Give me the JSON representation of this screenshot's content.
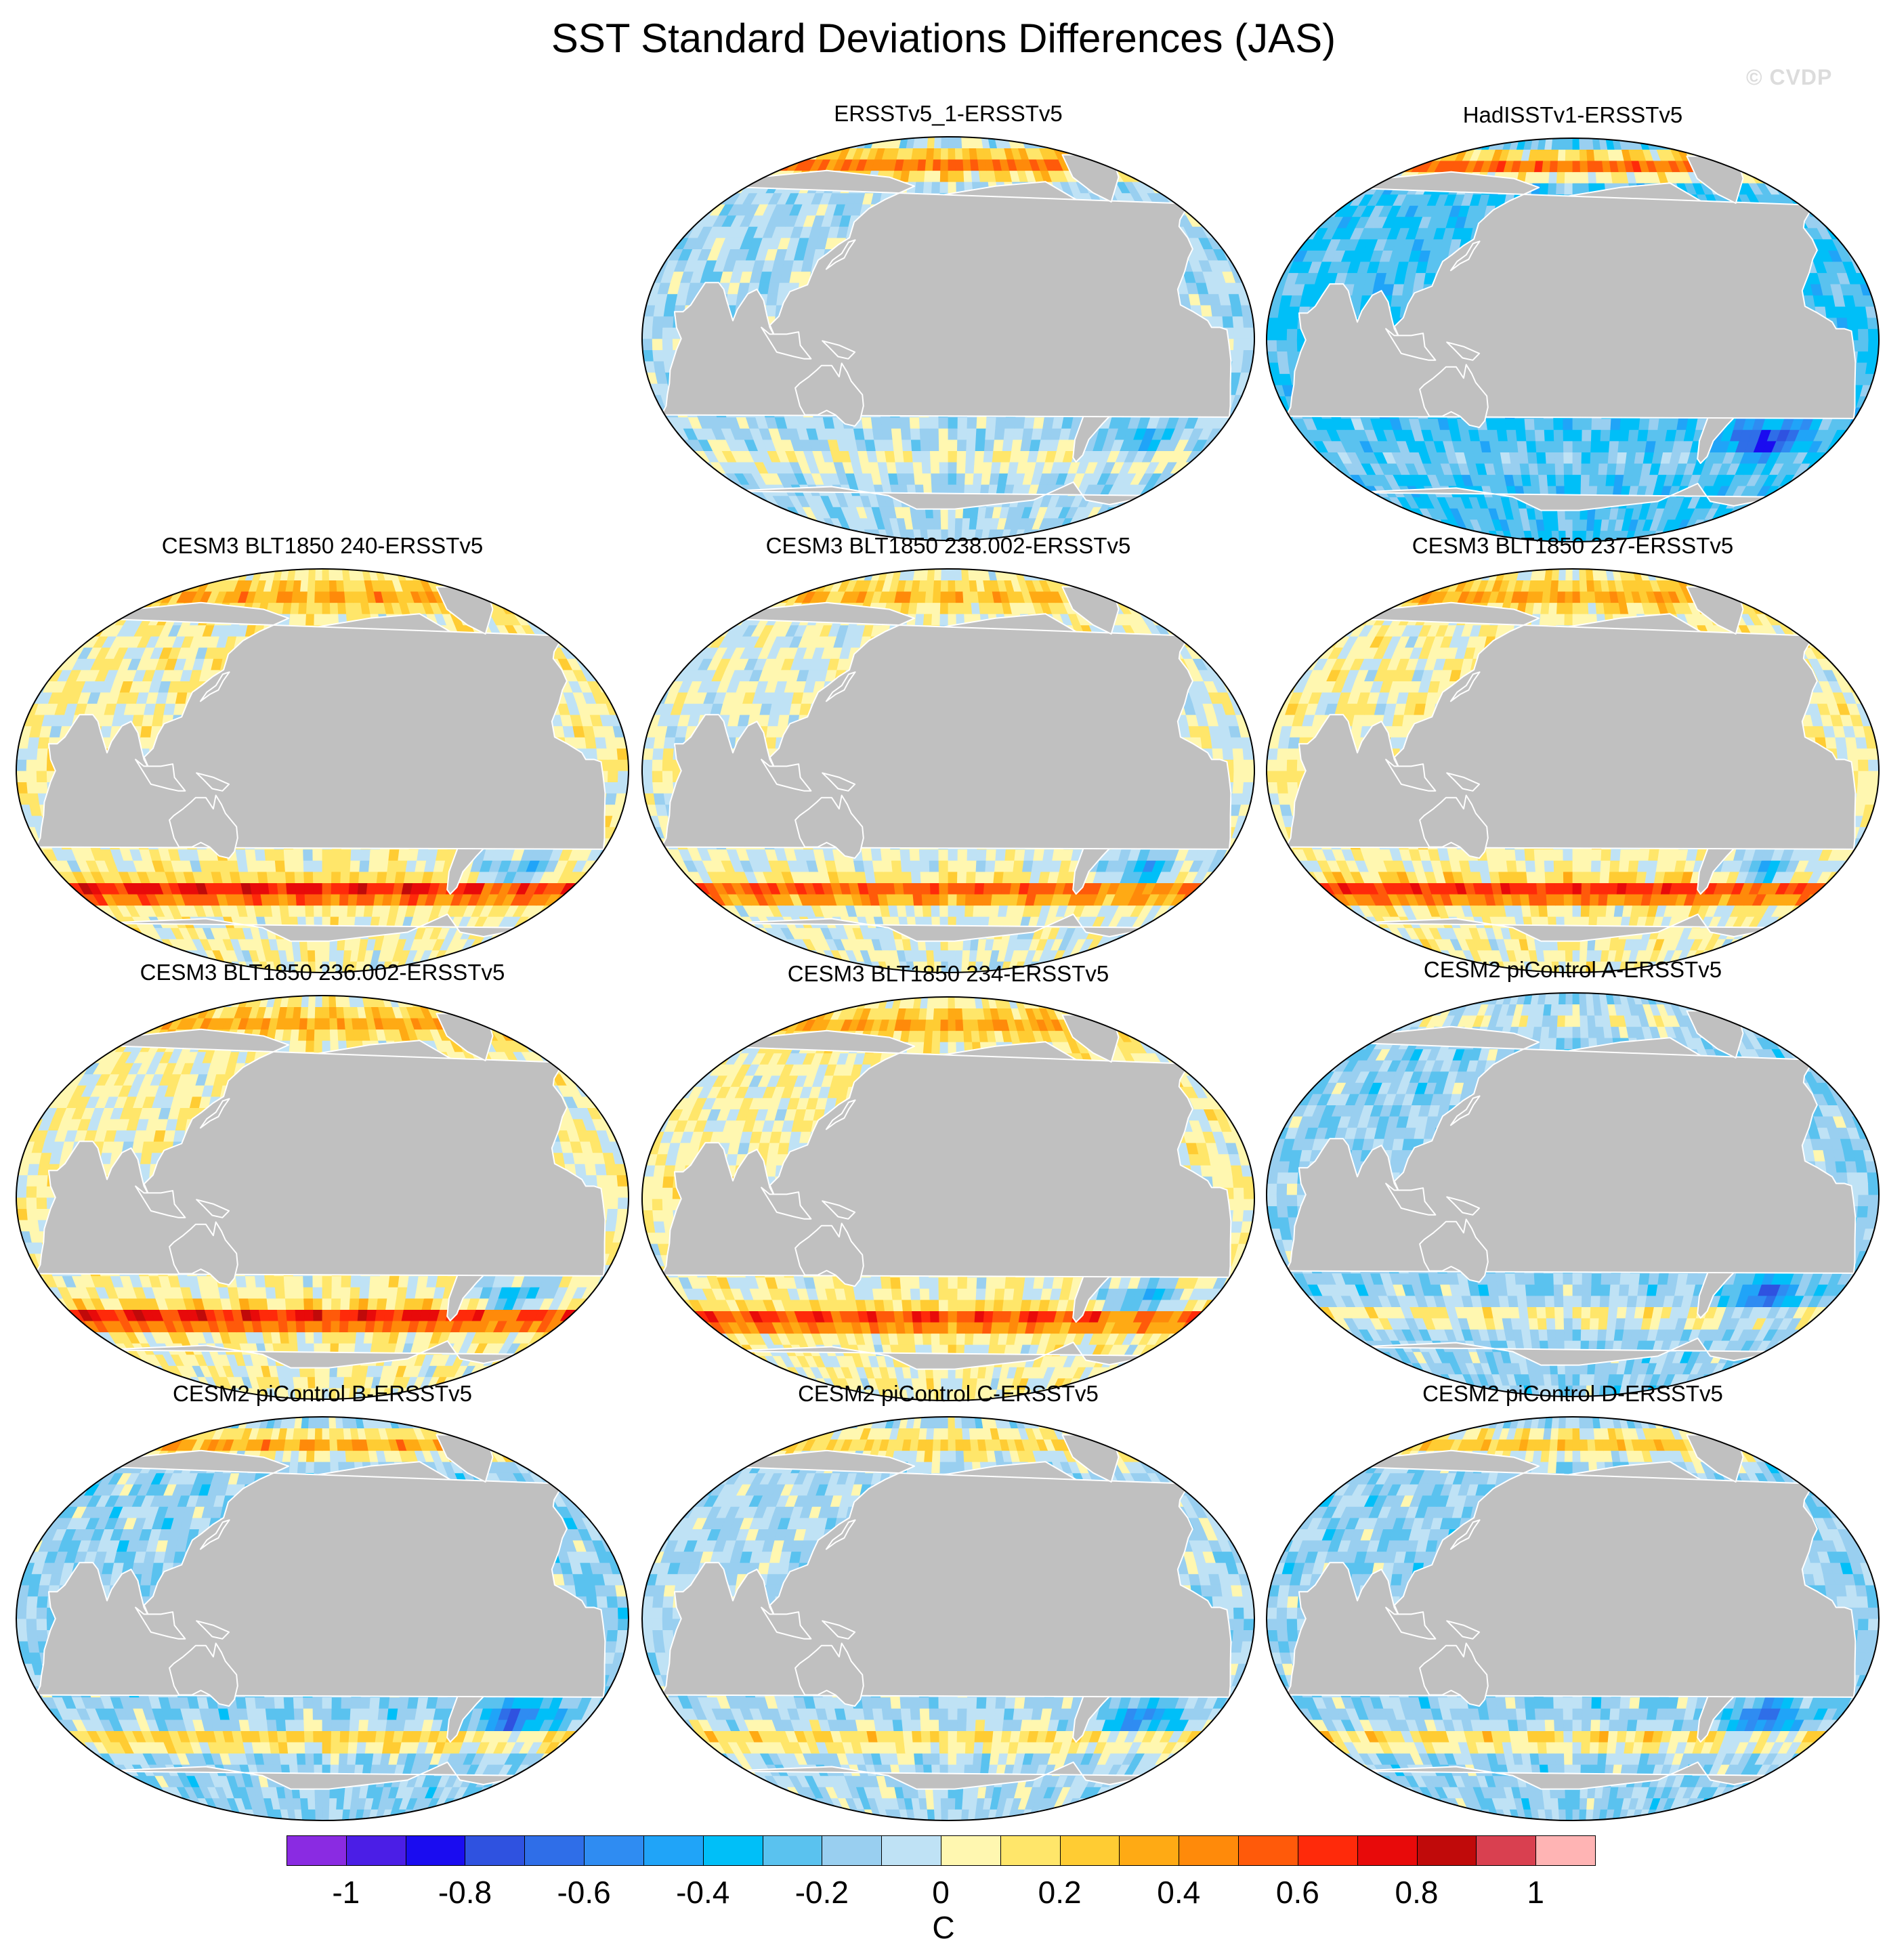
{
  "figure": {
    "title": "SST Standard Deviations Differences (JAS)",
    "watermark": "© CVDP"
  },
  "panels": [
    {
      "title": "ERSSTv5_1-ERSSTv5",
      "pattern": {
        "base": -0.1,
        "eq": 0.05,
        "itcz": 0.0,
        "npac": -0.15,
        "natl": 0.1,
        "so": 0.15,
        "arctic": 0.6,
        "warmpool": 0.0,
        "satl": -0.25,
        "seed": 1
      }
    },
    {
      "title": "HadISSTv1-ERSSTv5",
      "pattern": {
        "base": -0.28,
        "eq": 0.0,
        "itcz": 0.0,
        "npac": -0.2,
        "natl": -0.1,
        "so": 0.1,
        "arctic": 0.8,
        "warmpool": -0.1,
        "satl": -0.55,
        "seed": 2
      }
    },
    {
      "title": "CESM3 BLT1850 240-ERSSTv5",
      "pattern": {
        "base": 0.05,
        "eq": 0.6,
        "itcz": 0.3,
        "npac": 0.45,
        "natl": 0.6,
        "so": 0.7,
        "arctic": 0.3,
        "warmpool": 0.8,
        "satl": -0.4,
        "seed": 3
      }
    },
    {
      "title": "CESM3 BLT1850 238.002-ERSSTv5",
      "pattern": {
        "base": 0.0,
        "eq": 0.5,
        "itcz": 0.25,
        "npac": 0.4,
        "natl": 0.55,
        "so": 0.6,
        "arctic": 0.3,
        "warmpool": 0.7,
        "satl": -0.4,
        "seed": 4
      }
    },
    {
      "title": "CESM3 BLT1850 237-ERSSTv5",
      "pattern": {
        "base": 0.05,
        "eq": 0.65,
        "itcz": 0.3,
        "npac": 0.5,
        "natl": 0.6,
        "so": 0.65,
        "arctic": 0.3,
        "warmpool": 0.8,
        "satl": -0.4,
        "seed": 5
      }
    },
    {
      "title": "CESM3 BLT1850 236.002-ERSSTv5",
      "pattern": {
        "base": 0.05,
        "eq": 0.55,
        "itcz": 0.3,
        "npac": 0.45,
        "natl": 0.65,
        "so": 0.7,
        "arctic": 0.3,
        "warmpool": 0.8,
        "satl": -0.45,
        "seed": 6
      }
    },
    {
      "title": "CESM3 BLT1850 234-ERSSTv5",
      "pattern": {
        "base": 0.05,
        "eq": 0.65,
        "itcz": 0.35,
        "npac": 0.5,
        "natl": 0.6,
        "so": 0.6,
        "arctic": 0.3,
        "warmpool": 0.8,
        "satl": -0.45,
        "seed": 7
      }
    },
    {
      "title": "CESM2 piControl A-ERSSTv5",
      "pattern": {
        "base": -0.15,
        "eq": 0.45,
        "itcz": 0.05,
        "npac": -0.05,
        "natl": -0.1,
        "so": 0.25,
        "arctic": 0.15,
        "warmpool": 0.5,
        "satl": -0.5,
        "seed": 8
      }
    },
    {
      "title": "CESM2 piControl B-ERSSTv5",
      "pattern": {
        "base": -0.15,
        "eq": 0.3,
        "itcz": 0.05,
        "npac": -0.1,
        "natl": -0.1,
        "so": 0.4,
        "arctic": 0.5,
        "warmpool": 0.3,
        "satl": -0.55,
        "seed": 9
      }
    },
    {
      "title": "CESM2 piControl C-ERSSTv5",
      "pattern": {
        "base": -0.1,
        "eq": 0.65,
        "itcz": 0.1,
        "npac": -0.1,
        "natl": -0.05,
        "so": 0.3,
        "arctic": 0.3,
        "warmpool": 0.6,
        "satl": -0.45,
        "seed": 10
      }
    },
    {
      "title": "CESM2 piControl D-ERSSTv5",
      "pattern": {
        "base": -0.15,
        "eq": 0.35,
        "itcz": 0.05,
        "npac": -0.1,
        "natl": -0.1,
        "so": 0.35,
        "arctic": 0.4,
        "warmpool": 0.3,
        "satl": -0.5,
        "seed": 11
      }
    }
  ],
  "colorbar": {
    "colors": [
      "#8a2be2",
      "#4b1ee6",
      "#1a0cf0",
      "#2f52e0",
      "#2f6ee8",
      "#2f8cf2",
      "#20a4f8",
      "#00bff8",
      "#5ac2ef",
      "#99cff0",
      "#bfe2f5",
      "#fff7b0",
      "#ffe66a",
      "#ffcc33",
      "#ffaa14",
      "#ff8a0a",
      "#ff5a0a",
      "#ff2a0a",
      "#e80a0a",
      "#c00a0a",
      "#d94050",
      "#ffb4b4"
    ],
    "tick_labels": [
      "-1",
      "-0.8",
      "-0.6",
      "-0.4",
      "-0.2",
      "0",
      "0.2",
      "0.4",
      "0.6",
      "0.8",
      "1"
    ],
    "unit": "C"
  }
}
